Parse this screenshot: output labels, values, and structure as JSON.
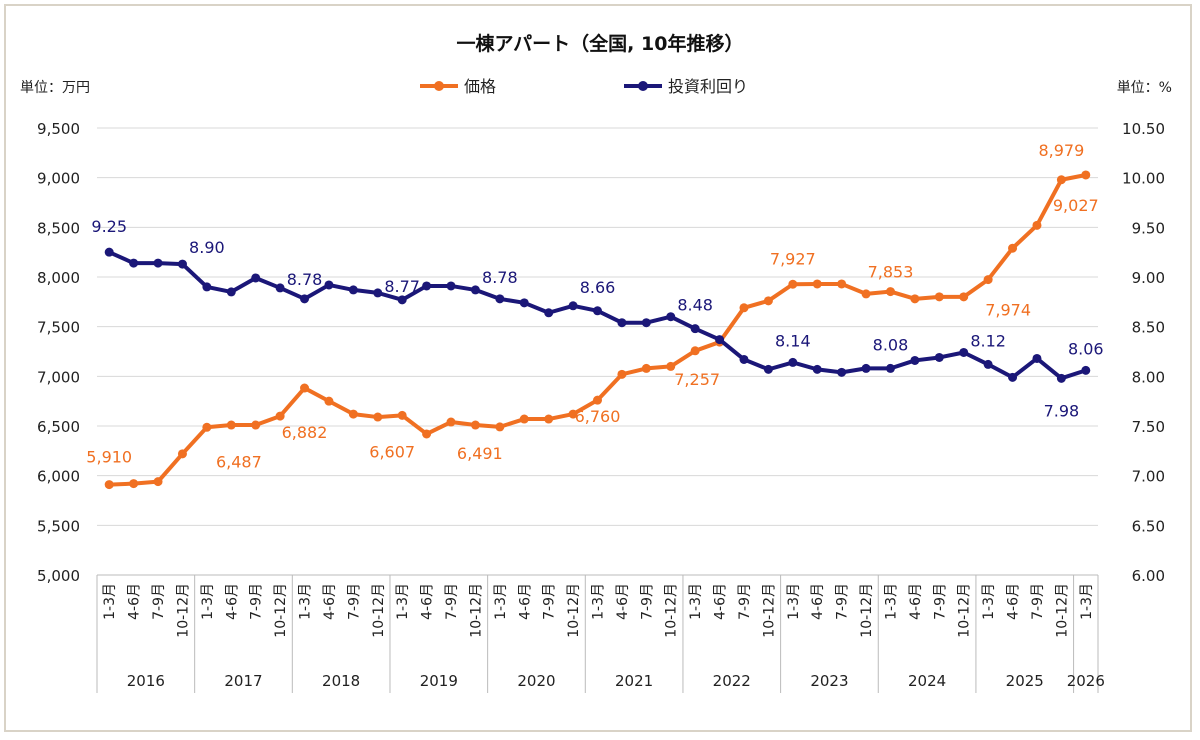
{
  "chart_data": {
    "type": "line",
    "title": "一棟アパート（全国, 10年推移）",
    "left_unit": "単位：万円",
    "right_unit": "単位：%",
    "quarters": [
      "1-3月",
      "4-6月",
      "7-9月",
      "10-12月"
    ],
    "years": [
      "2016",
      "2017",
      "2018",
      "2019",
      "2020",
      "2021",
      "2022",
      "2023",
      "2024",
      "2025",
      "2026"
    ],
    "x": [
      "2016 1-3月",
      "2016 4-6月",
      "2016 7-9月",
      "2016 10-12月",
      "2017 1-3月",
      "2017 4-6月",
      "2017 7-9月",
      "2017 10-12月",
      "2018 1-3月",
      "2018 4-6月",
      "2018 7-9月",
      "2018 10-12月",
      "2019 1-3月",
      "2019 4-6月",
      "2019 7-9月",
      "2019 10-12月",
      "2020 1-3月",
      "2020 4-6月",
      "2020 7-9月",
      "2020 10-12月",
      "2021 1-3月",
      "2021 4-6月",
      "2021 7-9月",
      "2021 10-12月",
      "2022 1-3月",
      "2022 4-6月",
      "2022 7-9月",
      "2022 10-12月",
      "2023 1-3月",
      "2023 4-6月",
      "2023 7-9月",
      "2023 10-12月",
      "2024 1-3月",
      "2024 4-6月",
      "2024 7-9月",
      "2024 10-12月",
      "2025 1-3月",
      "2025 4-6月",
      "2025 7-9月",
      "2025 10-12月",
      "2026 1-3月"
    ],
    "y_left": {
      "min": 5000,
      "max": 9500,
      "step": 500,
      "ticks": [
        "5,000",
        "5,500",
        "6,000",
        "6,500",
        "7,000",
        "7,500",
        "8,000",
        "8,500",
        "9,000",
        "9,500"
      ]
    },
    "y_right": {
      "min": 6.0,
      "max": 10.5,
      "step": 0.5,
      "ticks": [
        "6.00",
        "6.50",
        "7.00",
        "7.50",
        "8.00",
        "8.50",
        "9.00",
        "9.50",
        "10.00",
        "10.50"
      ]
    },
    "grid": true,
    "legend_position": "top",
    "series": [
      {
        "name": "価格",
        "axis": "left",
        "color": "#f07022",
        "values": [
          5910,
          5920,
          5940,
          6220,
          6487,
          6510,
          6510,
          6600,
          6882,
          6750,
          6620,
          6590,
          6607,
          6420,
          6540,
          6510,
          6491,
          6570,
          6570,
          6620,
          6760,
          7020,
          7080,
          7100,
          7257,
          7345,
          7690,
          7760,
          7927,
          7930,
          7930,
          7830,
          7853,
          7780,
          7800,
          7800,
          7974,
          8290,
          8520,
          8979,
          9027
        ],
        "labels": {
          "0": "5,910",
          "4": "6,487",
          "8": "6,882",
          "12": "6,607",
          "16": "6,491",
          "20": "6,760",
          "24": "7,257",
          "28": "7,927",
          "32": "7,853",
          "36": "7,974",
          "39": "8,979",
          "40": "9,027"
        }
      },
      {
        "name": "投資利回り",
        "axis": "right",
        "color": "#1b1778",
        "values": [
          9.25,
          9.14,
          9.14,
          9.13,
          8.9,
          8.85,
          8.99,
          8.89,
          8.78,
          8.92,
          8.87,
          8.84,
          8.77,
          8.91,
          8.91,
          8.87,
          8.78,
          8.74,
          8.64,
          8.71,
          8.66,
          8.54,
          8.54,
          8.6,
          8.48,
          8.37,
          8.17,
          8.07,
          8.14,
          8.07,
          8.04,
          8.08,
          8.08,
          8.16,
          8.19,
          8.24,
          8.12,
          7.99,
          8.18,
          7.98,
          8.06
        ],
        "labels": {
          "0": "9.25",
          "4": "8.90",
          "8": "8.78",
          "12": "8.77",
          "16": "8.78",
          "20": "8.66",
          "24": "8.48",
          "28": "8.14",
          "32": "8.08",
          "36": "8.12",
          "39": "7.98",
          "40": "8.06"
        }
      }
    ]
  }
}
